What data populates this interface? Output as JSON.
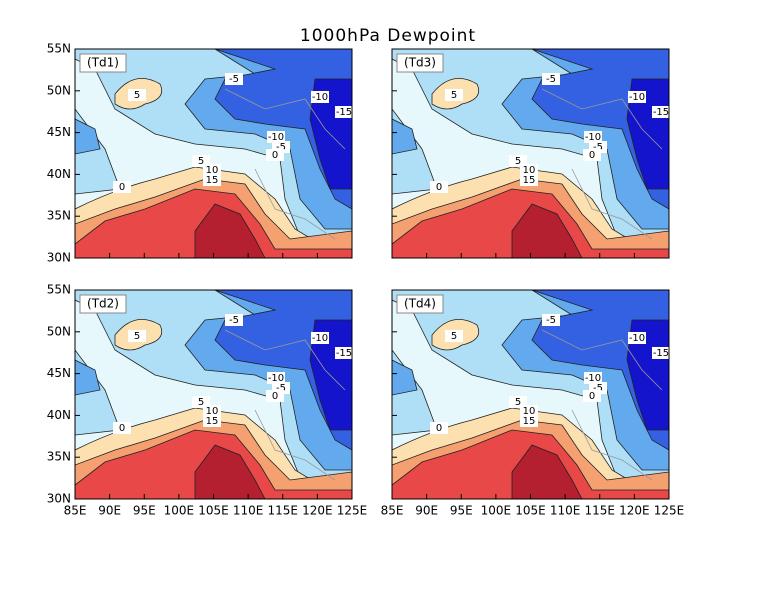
{
  "title": "1000hPa Dewpoint",
  "panels": [
    {
      "label": "(Td1)",
      "contour_labels": [
        "-5",
        "-10",
        "-15",
        "-10",
        "-5",
        "0",
        "5",
        "5",
        "10",
        "15",
        "0"
      ]
    },
    {
      "label": "(Td3)",
      "contour_labels": [
        "-5",
        "-10",
        "-15",
        "-10",
        "-5",
        "0",
        "5",
        "5",
        "10",
        "15",
        "0"
      ]
    },
    {
      "label": "(Td2)",
      "contour_labels": [
        "-5",
        "-10",
        "-15",
        "-10",
        "-5",
        "0",
        "5",
        "5",
        "10",
        "15",
        "0"
      ]
    },
    {
      "label": "(Td4)",
      "contour_labels": [
        "-5",
        "-10",
        "-15",
        "-10",
        "-5",
        "0",
        "5",
        "5",
        "10",
        "15",
        "0"
      ]
    }
  ],
  "lat_ticks": [
    "55N",
    "50N",
    "45N",
    "40N",
    "35N",
    "30N"
  ],
  "lon_ticks": [
    "85E",
    "90E",
    "95E",
    "100E",
    "105E",
    "110E",
    "115E",
    "120E",
    "125E"
  ]
}
